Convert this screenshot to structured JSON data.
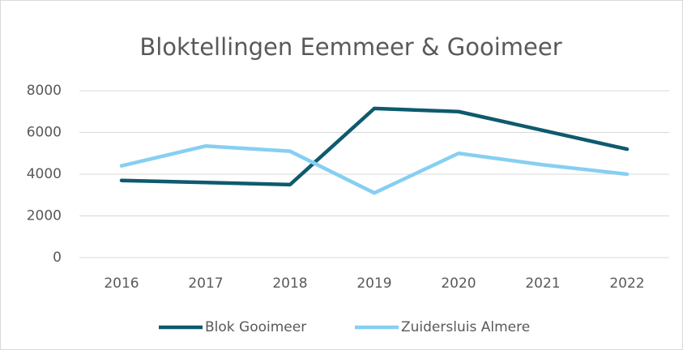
{
  "chart_data": {
    "type": "line",
    "title": "Bloktellingen Eemmeer & Gooimeer",
    "categories": [
      "2016",
      "2017",
      "2018",
      "2019",
      "2020",
      "2021",
      "2022"
    ],
    "series": [
      {
        "name": "Blok Gooimeer",
        "color": "#0e5a6e",
        "values": [
          3700,
          3600,
          3500,
          7150,
          7000,
          6100,
          5200
        ]
      },
      {
        "name": "Zuidersluis Almere",
        "color": "#86cff2",
        "values": [
          4400,
          5350,
          5100,
          3100,
          5000,
          4450,
          4000
        ]
      }
    ],
    "ylim": [
      0,
      8000
    ],
    "yticks": [
      0,
      2000,
      4000,
      6000,
      8000
    ],
    "grid": true,
    "legend": "bottom"
  }
}
